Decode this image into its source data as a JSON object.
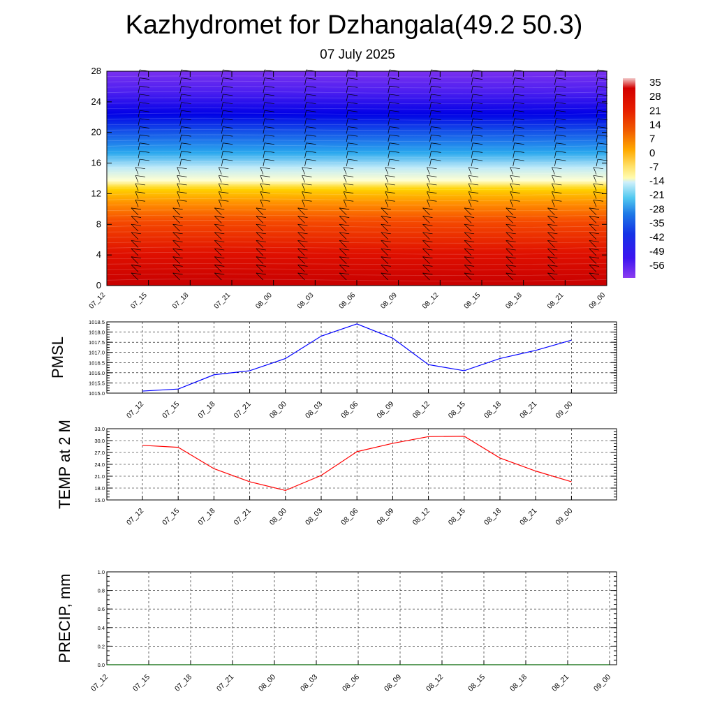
{
  "title": "Kazhydromet for Dzhangala(49.2 50.3)",
  "subtitle": "07 July 2025",
  "time_labels": [
    "07_12",
    "07_15",
    "07_18",
    "07_21",
    "08_00",
    "08_03",
    "08_06",
    "08_09",
    "08_12",
    "08_15",
    "08_18",
    "08_21",
    "09_00"
  ],
  "chart_data": [
    {
      "type": "heatmap",
      "name": "vertical-profile",
      "x": [
        "07_12",
        "07_15",
        "07_18",
        "07_21",
        "08_00",
        "08_03",
        "08_06",
        "08_09",
        "08_12",
        "08_15",
        "08_18",
        "08_21",
        "09_00"
      ],
      "y_ticks": [
        0,
        4,
        8,
        12,
        16,
        20,
        24,
        28
      ],
      "ylim": [
        0,
        28
      ],
      "colorbar_labels": [
        35,
        28,
        21,
        14,
        7,
        0,
        -7,
        -14,
        -21,
        -28,
        -35,
        -42,
        -49,
        -56
      ],
      "colormap": [
        "#f2c8c8",
        "#d20000",
        "#e61e00",
        "#f05a00",
        "#ff8c00",
        "#ffbf00",
        "#ffe066",
        "#fffbb0",
        "#c8ecfa",
        "#50c8f0",
        "#1e78e6",
        "#1432e6",
        "#0000e6",
        "#5014f0",
        "#8c3cf0"
      ],
      "wind_barbs": true
    },
    {
      "type": "line",
      "name": "pmsl",
      "ylabel": "PMSL",
      "x": [
        "07_12",
        "07_15",
        "07_18",
        "07_21",
        "08_00",
        "08_03",
        "08_06",
        "08_09",
        "08_12",
        "08_15",
        "08_18",
        "08_21",
        "09_00"
      ],
      "values": [
        1015.1,
        1015.2,
        1015.9,
        1016.1,
        1016.7,
        1017.8,
        1018.4,
        1017.7,
        1016.4,
        1016.1,
        1016.7,
        1017.1,
        1017.6
      ],
      "ylim": [
        1015.0,
        1018.5
      ],
      "y_ticks": [
        "1015.0",
        "1015.5",
        "1016.0",
        "1016.5",
        "1017.0",
        "1017.5",
        "1018.0",
        "1018.5"
      ],
      "color": "#0000ff",
      "grid": true
    },
    {
      "type": "line",
      "name": "temp2m",
      "ylabel": "TEMP at 2 M",
      "x": [
        "07_12",
        "07_15",
        "07_18",
        "07_21",
        "08_00",
        "08_03",
        "08_06",
        "08_09",
        "08_12",
        "08_15",
        "08_18",
        "08_21",
        "09_00"
      ],
      "values": [
        28.8,
        28.3,
        22.9,
        19.6,
        17.4,
        21.2,
        27.2,
        29.3,
        31.0,
        31.1,
        25.6,
        22.3,
        19.6
      ],
      "ylim": [
        15.0,
        33.0
      ],
      "y_ticks": [
        "15.0",
        "18.0",
        "21.0",
        "24.0",
        "27.0",
        "30.0",
        "33.0"
      ],
      "color": "#ff0000",
      "grid": true
    },
    {
      "type": "line",
      "name": "precip",
      "ylabel": "PRECIP, mm",
      "x": [
        "07_12",
        "07_15",
        "07_18",
        "07_21",
        "08_00",
        "08_03",
        "08_06",
        "08_09",
        "08_12",
        "08_15",
        "08_18",
        "08_21",
        "09_00"
      ],
      "values": [
        0,
        0,
        0,
        0,
        0,
        0,
        0,
        0,
        0,
        0,
        0,
        0,
        0
      ],
      "ylim": [
        0.0,
        1.0
      ],
      "y_ticks": [
        "0.0",
        "0.2",
        "0.4",
        "0.6",
        "0.8",
        "1.0"
      ],
      "color": "#006400",
      "grid": true
    }
  ]
}
